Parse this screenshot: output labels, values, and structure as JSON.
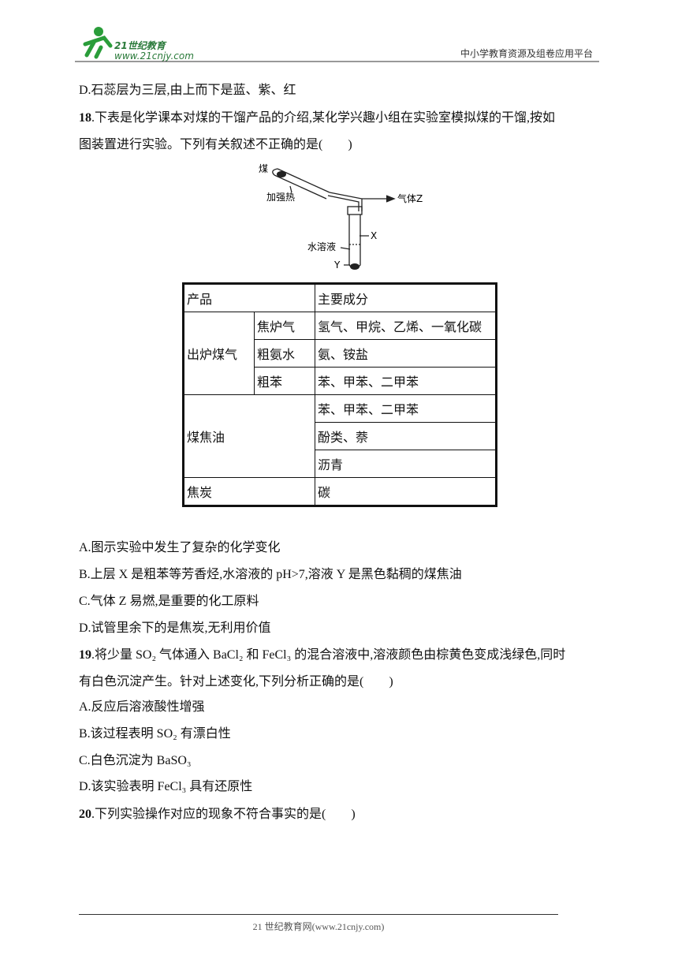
{
  "header": {
    "logo_title": "21世纪教育",
    "logo_url": "www.21cnjy.com",
    "platform": "中小学教育资源及组卷应用平台"
  },
  "prev_option": "D.石蕊层为三层,由上而下是蓝、紫、红",
  "q18": {
    "number": "18",
    "stem": [
      ".下表是化学课本对煤的干馏产品的介绍,某化学兴趣小组在实验室模拟煤的干馏,按如",
      "图装置进行实验。下列有关叙述不正确的是(　　)"
    ],
    "diagram": {
      "coal": "煤",
      "heat": "加强热",
      "gas": "气体Z",
      "x": "X",
      "solution": "水溶液",
      "y": "Y"
    },
    "table": {
      "header": [
        "产品",
        "主要成分"
      ],
      "rows": [
        [
          "出炉煤气",
          "焦炉气",
          "氢气、甲烷、乙烯、一氧化碳"
        ],
        [
          "粗氨水",
          "氨、铵盐"
        ],
        [
          "粗苯",
          "苯、甲苯、二甲苯"
        ],
        [
          "煤焦油",
          "苯、甲苯、二甲苯"
        ],
        [
          "酚类、萘"
        ],
        [
          "沥青"
        ],
        [
          "焦炭",
          "碳"
        ]
      ]
    },
    "options": [
      "A.图示实验中发生了复杂的化学变化",
      "B.上层 X 是粗苯等芳香烃,水溶液的 pH>7,溶液 Y 是黑色黏稠的煤焦油",
      "C.气体 Z 易燃,是重要的化工原料",
      "D.试管里余下的是焦炭,无利用价值"
    ]
  },
  "q19": {
    "number": "19",
    "stem": [
      ".将少量 SO₂ 气体通入 BaCl₂ 和 FeCl₃ 的混合溶液中,溶液颜色由棕黄色变成浅绿色,同时",
      "有白色沉淀产生。针对上述变化,下列分析正确的是(　　)"
    ],
    "options": [
      "A.反应后溶液酸性增强",
      "B.该过程表明 SO₂ 有漂白性",
      "C.白色沉淀为 BaSO₃",
      "D.该实验表明 FeCl₃ 具有还原性"
    ]
  },
  "q20": {
    "number": "20",
    "stem": [
      ".下列实验操作对应的现象不符合事实的是(　　)"
    ]
  },
  "footer": "21 世纪教育网(www.21cnjy.com)"
}
